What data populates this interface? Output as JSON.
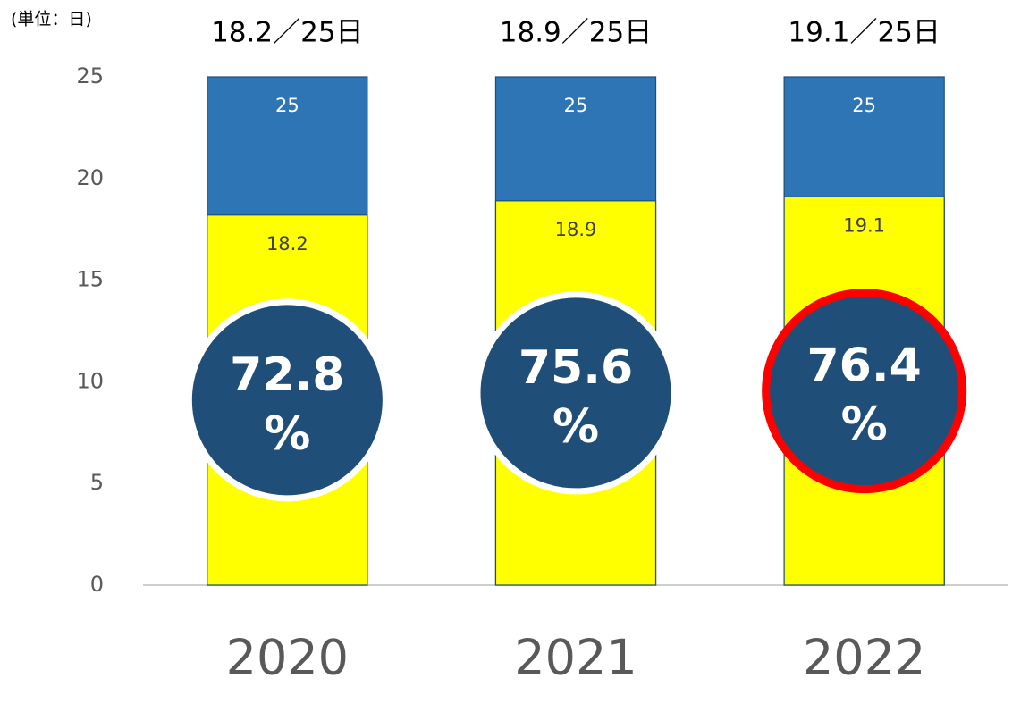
{
  "chart_data": {
    "type": "bar",
    "overlap": true,
    "unit_label": "(単位：日)",
    "categories": [
      "2020",
      "2021",
      "2022"
    ],
    "headers": [
      "18.2／25日",
      "18.9／25日",
      "19.1／25日"
    ],
    "series": [
      {
        "color": "#2e75b6",
        "values": [
          25,
          25,
          25
        ]
      },
      {
        "color": "#ffff00",
        "values": [
          18.2,
          18.9,
          19.1
        ]
      }
    ],
    "badges": [
      [
        "72.8",
        "%"
      ],
      [
        "75.6",
        "%"
      ],
      [
        "76.4",
        "%"
      ]
    ],
    "badge_color": "#1f4e79",
    "highlight": [
      false,
      false,
      true
    ],
    "highlight_color": "#ff0000",
    "ylim": [
      0,
      25
    ],
    "yticks": [
      0,
      5,
      10,
      15,
      20,
      25
    ]
  }
}
